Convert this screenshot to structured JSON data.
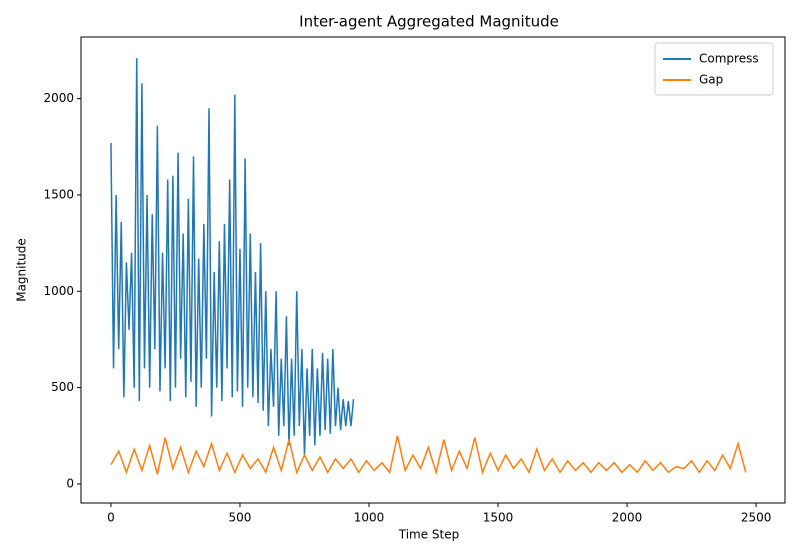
{
  "chart_data": {
    "type": "line",
    "title": "Inter-agent Aggregated Magnitude",
    "x_label": "Time Step",
    "y_label": "Magnitude",
    "xlim": [
      -116,
      2612
    ],
    "ylim": [
      -99,
      2320
    ],
    "xticks": [
      0,
      500,
      1000,
      1500,
      2000,
      2500
    ],
    "yticks": [
      0,
      500,
      1000,
      1500,
      2000
    ],
    "legend": "upper right",
    "series": [
      {
        "name": "Compress",
        "color": "#1f77b4",
        "x": [
          0,
          10,
          20,
          30,
          40,
          50,
          60,
          70,
          80,
          90,
          100,
          110,
          120,
          130,
          140,
          150,
          160,
          170,
          180,
          190,
          200,
          210,
          220,
          230,
          240,
          250,
          260,
          270,
          280,
          290,
          300,
          310,
          320,
          330,
          340,
          350,
          360,
          370,
          380,
          390,
          400,
          410,
          420,
          430,
          440,
          450,
          460,
          470,
          480,
          490,
          500,
          510,
          520,
          530,
          540,
          550,
          560,
          570,
          580,
          590,
          600,
          610,
          620,
          630,
          640,
          650,
          660,
          670,
          680,
          690,
          700,
          710,
          720,
          730,
          740,
          750,
          760,
          770,
          780,
          790,
          800,
          810,
          820,
          830,
          840,
          850,
          860,
          870,
          880,
          890,
          900,
          910,
          920,
          930,
          940
        ],
        "values": [
          1770,
          600,
          1500,
          700,
          1360,
          450,
          1150,
          800,
          1200,
          500,
          2210,
          430,
          2080,
          600,
          1500,
          500,
          1400,
          700,
          1860,
          480,
          1200,
          600,
          1580,
          430,
          1600,
          500,
          1720,
          650,
          1300,
          450,
          1480,
          530,
          1700,
          400,
          1170,
          500,
          1350,
          650,
          1950,
          350,
          1100,
          500,
          1260,
          430,
          1350,
          600,
          1580,
          450,
          2020,
          480,
          1220,
          400,
          1690,
          500,
          1300,
          450,
          1100,
          420,
          1250,
          380,
          1000,
          300,
          700,
          400,
          1000,
          250,
          650,
          300,
          870,
          200,
          650,
          250,
          1000,
          300,
          700,
          150,
          600,
          250,
          700,
          200,
          600,
          250,
          680,
          280,
          650,
          260,
          700,
          300,
          500,
          280,
          440,
          300,
          430,
          300,
          440
        ]
      },
      {
        "name": "Gap",
        "color": "#ff7f0e",
        "x": [
          0,
          30,
          60,
          90,
          120,
          150,
          180,
          210,
          240,
          270,
          300,
          330,
          360,
          390,
          420,
          450,
          480,
          510,
          540,
          570,
          600,
          630,
          660,
          690,
          720,
          750,
          780,
          810,
          840,
          870,
          900,
          930,
          960,
          990,
          1020,
          1050,
          1080,
          1110,
          1140,
          1170,
          1200,
          1230,
          1260,
          1290,
          1320,
          1350,
          1380,
          1410,
          1440,
          1470,
          1500,
          1530,
          1560,
          1590,
          1620,
          1650,
          1680,
          1710,
          1740,
          1770,
          1800,
          1830,
          1860,
          1890,
          1920,
          1950,
          1980,
          2010,
          2040,
          2070,
          2100,
          2130,
          2160,
          2190,
          2220,
          2250,
          2280,
          2310,
          2340,
          2370,
          2400,
          2430,
          2460
        ],
        "values": [
          100,
          170,
          60,
          180,
          70,
          200,
          50,
          240,
          80,
          190,
          60,
          170,
          90,
          210,
          70,
          160,
          60,
          150,
          80,
          130,
          60,
          190,
          70,
          230,
          60,
          150,
          70,
          140,
          60,
          130,
          80,
          130,
          60,
          120,
          70,
          110,
          60,
          250,
          70,
          150,
          80,
          190,
          60,
          230,
          70,
          170,
          80,
          240,
          60,
          160,
          70,
          150,
          80,
          130,
          60,
          180,
          70,
          130,
          60,
          120,
          70,
          110,
          60,
          110,
          70,
          110,
          60,
          100,
          60,
          120,
          70,
          110,
          60,
          90,
          80,
          120,
          60,
          120,
          70,
          150,
          80,
          210,
          60
        ]
      }
    ]
  }
}
